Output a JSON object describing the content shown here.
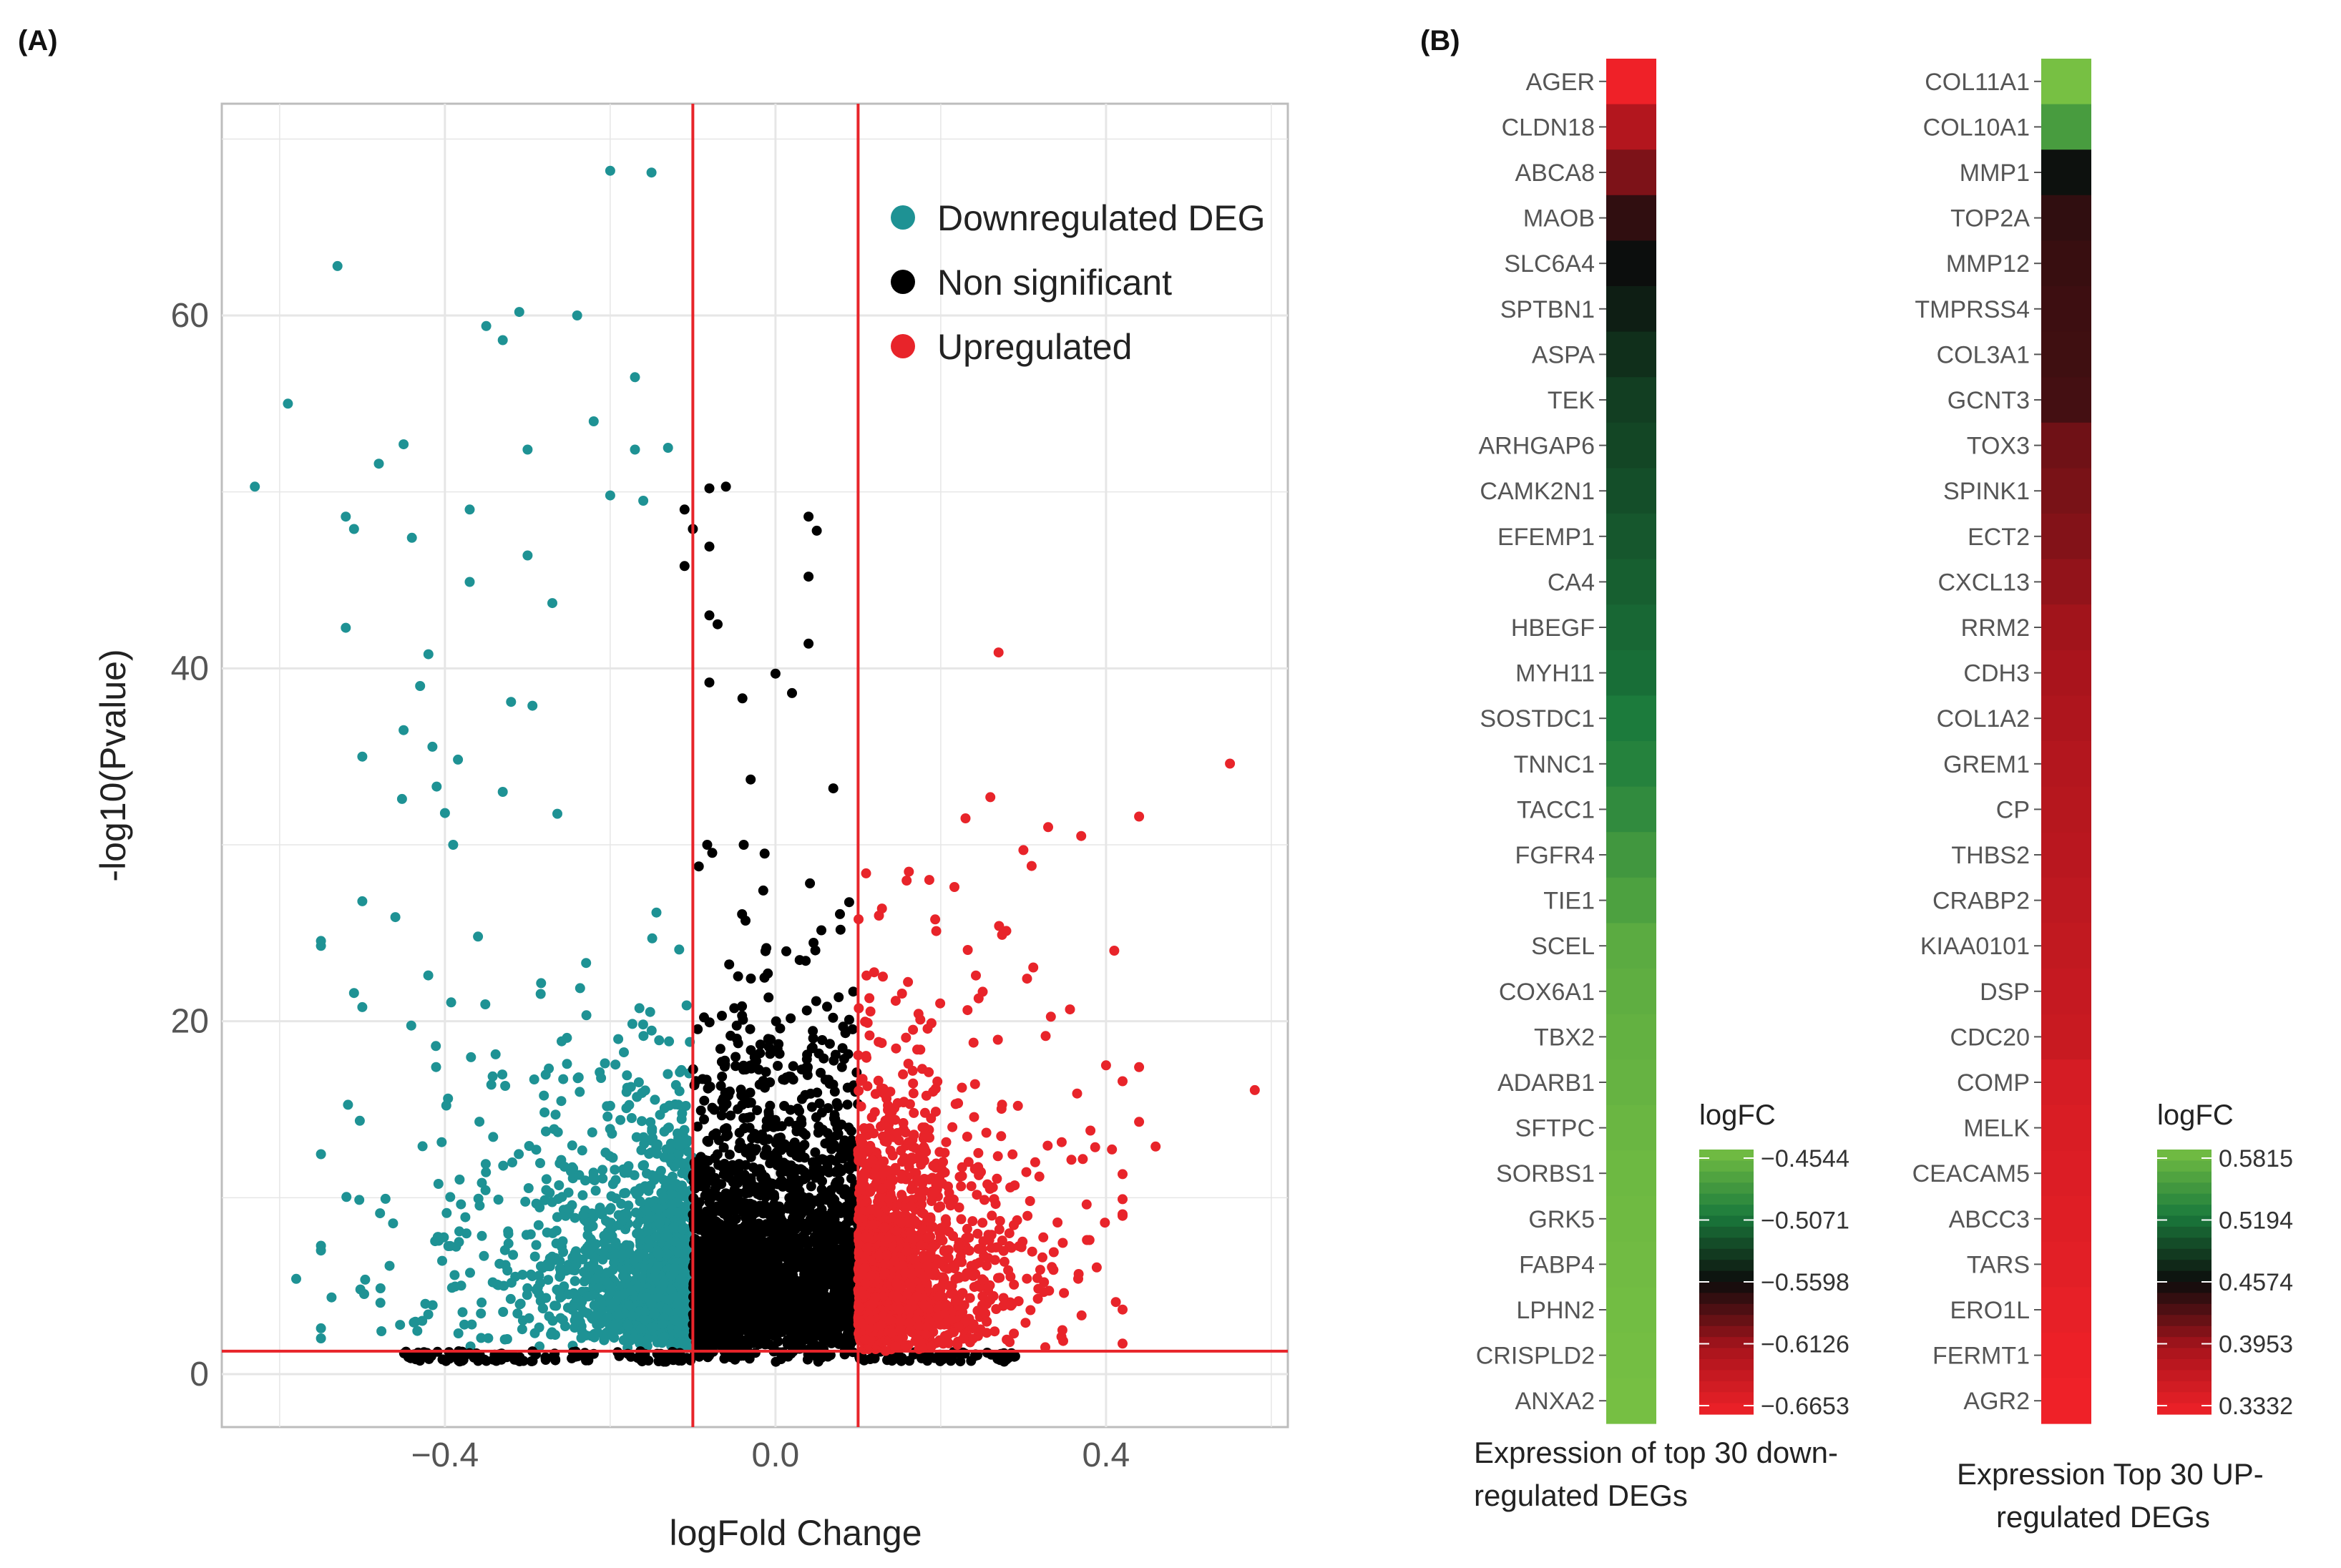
{
  "chart_data": [
    {
      "type": "scatter",
      "panel_label": "(A)",
      "xlabel": "logFold Change",
      "ylabel": "-log10(Pvalue)",
      "xlim": [
        -0.67,
        0.62
      ],
      "ylim": [
        -3,
        72
      ],
      "xticks": [
        -0.4,
        0.0,
        0.4
      ],
      "xtick_labels": [
        "−0.4",
        "0.0",
        "0.4"
      ],
      "yticks": [
        0,
        20,
        40,
        60
      ],
      "ytick_labels": [
        "0",
        "20",
        "40",
        "60"
      ],
      "thresholds": {
        "vlines": [
          -0.1,
          0.1
        ],
        "hline": 1.3
      },
      "grid": true,
      "legend_position": "top-right",
      "series": [
        {
          "name": "Downregulated DEG",
          "color": "#1e9294",
          "outliers": [
            [
              -0.2,
              68.2
            ],
            [
              -0.15,
              68.1
            ],
            [
              -0.53,
              62.8
            ],
            [
              -0.59,
              55.0
            ],
            [
              -0.63,
              50.3
            ],
            [
              -0.31,
              60.2
            ],
            [
              -0.24,
              60.0
            ],
            [
              -0.35,
              59.4
            ],
            [
              -0.33,
              58.6
            ],
            [
              -0.17,
              56.5
            ],
            [
              -0.22,
              54.0
            ],
            [
              -0.45,
              52.7
            ],
            [
              -0.48,
              51.6
            ],
            [
              -0.3,
              52.4
            ],
            [
              -0.17,
              52.4
            ],
            [
              -0.13,
              52.5
            ],
            [
              -0.52,
              48.6
            ],
            [
              -0.51,
              47.9
            ],
            [
              -0.44,
              47.4
            ],
            [
              -0.2,
              49.8
            ],
            [
              -0.16,
              49.5
            ],
            [
              -0.52,
              42.3
            ],
            [
              -0.3,
              46.4
            ],
            [
              -0.27,
              43.7
            ],
            [
              -0.42,
              40.8
            ],
            [
              -0.43,
              39.0
            ],
            [
              -0.37,
              49.0
            ],
            [
              -0.37,
              44.9
            ],
            [
              -0.32,
              38.1
            ],
            [
              -0.45,
              36.5
            ],
            [
              -0.5,
              35.0
            ],
            [
              -0.41,
              33.3
            ],
            [
              -0.4,
              31.8
            ],
            [
              -0.33,
              33.0
            ],
            [
              -0.39,
              30.0
            ],
            [
              -0.5,
              26.8
            ],
            [
              -0.46,
              25.9
            ],
            [
              -0.36,
              24.8
            ],
            [
              -0.51,
              21.6
            ],
            [
              -0.5,
              20.8
            ],
            [
              -0.58,
              5.4
            ],
            [
              -0.55,
              2.6
            ]
          ]
        },
        {
          "name": "Non significant",
          "color": "#000000",
          "outliers": [
            [
              -0.06,
              50.3
            ],
            [
              -0.08,
              50.2
            ],
            [
              -0.11,
              49.0
            ],
            [
              -0.1,
              47.9
            ],
            [
              -0.08,
              46.9
            ],
            [
              -0.11,
              45.8
            ],
            [
              0.04,
              48.6
            ],
            [
              0.05,
              47.8
            ],
            [
              0.04,
              45.2
            ],
            [
              0.04,
              41.4
            ],
            [
              -0.08,
              43.0
            ],
            [
              -0.07,
              42.5
            ],
            [
              0.0,
              39.7
            ],
            [
              0.02,
              38.6
            ],
            [
              -0.08,
              39.2
            ],
            [
              -0.04,
              38.3
            ],
            [
              0.07,
              33.2
            ],
            [
              -0.03,
              33.7
            ]
          ]
        },
        {
          "name": "Upregulated",
          "color": "#e8242a",
          "outliers": [
            [
              0.27,
              40.9
            ],
            [
              0.55,
              34.6
            ],
            [
              0.58,
              16.1
            ],
            [
              0.44,
              31.6
            ],
            [
              0.37,
              30.5
            ],
            [
              0.33,
              31.0
            ],
            [
              0.3,
              29.7
            ],
            [
              0.31,
              28.8
            ],
            [
              0.23,
              31.5
            ],
            [
              0.26,
              32.7
            ],
            [
              0.41,
              24.0
            ],
            [
              0.4,
              17.5
            ],
            [
              0.44,
              17.4
            ],
            [
              0.42,
              16.6
            ],
            [
              0.44,
              14.3
            ],
            [
              0.46,
              12.9
            ],
            [
              0.38,
              7.6
            ]
          ]
        }
      ]
    },
    {
      "type": "heatmap",
      "panel_label": "(B)",
      "title": "Expression of top 30 down-\nregulated DEGs",
      "title_lines": [
        "Expression of top 30 down-",
        "regulated DEGs"
      ],
      "colorbar_title": "logFC",
      "colorbar_labels": [
        "−0.4544",
        "−0.5071",
        "−0.5598",
        "−0.6126",
        "−0.6653"
      ],
      "range": [
        -0.6653,
        -0.4544
      ],
      "genes": [
        "AGER",
        "CLDN18",
        "ABCA8",
        "MAOB",
        "SLC6A4",
        "SPTBN1",
        "ASPA",
        "TEK",
        "ARHGAP6",
        "CAMK2N1",
        "EFEMP1",
        "CA4",
        "HBEGF",
        "MYH11",
        "SOSTDC1",
        "TNNC1",
        "TACC1",
        "FGFR4",
        "TIE1",
        "SCEL",
        "COX6A1",
        "TBX2",
        "ADARB1",
        "SFTPC",
        "SORBS1",
        "GRK5",
        "FABP4",
        "LPHN2",
        "CRISPLD2",
        "ANXA2"
      ],
      "values": [
        -0.6653,
        -0.621,
        -0.598,
        -0.572,
        -0.559,
        -0.551,
        -0.543,
        -0.536,
        -0.532,
        -0.528,
        -0.524,
        -0.52,
        -0.516,
        -0.513,
        -0.506,
        -0.501,
        -0.494,
        -0.485,
        -0.478,
        -0.47,
        -0.468,
        -0.466,
        -0.464,
        -0.462,
        -0.46,
        -0.459,
        -0.458,
        -0.457,
        -0.456,
        -0.455
      ]
    },
    {
      "type": "heatmap",
      "title": "Expression Top 30 UP-\nregulated DEGs",
      "title_lines": [
        "Expression Top 30 UP-",
        "regulated DEGs"
      ],
      "colorbar_title": "logFC",
      "colorbar_labels": [
        "0.5815",
        "0.5194",
        "0.4574",
        "0.3953",
        "0.3332"
      ],
      "range": [
        0.3332,
        0.5815
      ],
      "genes": [
        "COL11A1",
        "COL10A1",
        "MMP1",
        "TOP2A",
        "MMP12",
        "TMPRSS4",
        "COL3A1",
        "GCNT3",
        "TOX3",
        "SPINK1",
        "ECT2",
        "CXCL13",
        "RRM2",
        "CDH3",
        "COL1A2",
        "GREM1",
        "CP",
        "THBS2",
        "CRABP2",
        "KIAA0101",
        "DSP",
        "CDC20",
        "COMP",
        "MELK",
        "CEACAM5",
        "ABCC3",
        "TARS",
        "ERO1L",
        "FERMT1",
        "AGR2"
      ],
      "values": [
        0.5815,
        0.55,
        0.46,
        0.443,
        0.44,
        0.438,
        0.437,
        0.435,
        0.418,
        0.414,
        0.41,
        0.404,
        0.398,
        0.394,
        0.39,
        0.386,
        0.383,
        0.38,
        0.377,
        0.373,
        0.37,
        0.367,
        0.356,
        0.352,
        0.35,
        0.347,
        0.345,
        0.34,
        0.336,
        0.3332
      ]
    }
  ]
}
